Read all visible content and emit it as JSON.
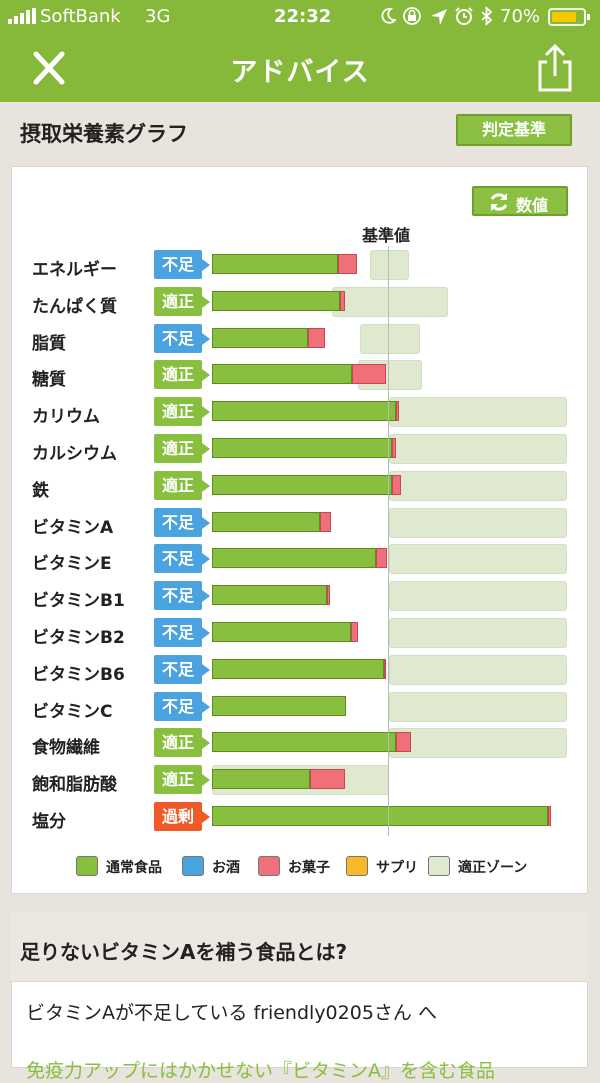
{
  "status": {
    "carrier": "SoftBank",
    "network": "3G",
    "time": "22:32",
    "battery": "70%"
  },
  "nav": {
    "title": "アドバイス",
    "close_icon": "close-icon",
    "share_icon": "share-icon"
  },
  "section": {
    "title": "摂取栄養素グラフ",
    "criteria_button": "判定基準",
    "value_button": "数値",
    "base_label": "基準値"
  },
  "colors": {
    "ok": "#88bf3f",
    "low": "#4aa3df",
    "over": "#ef5a28",
    "snack": "#f0707a",
    "supplement": "#f7b82b",
    "zone": "#dfe9cf"
  },
  "nutrients": [
    {
      "name": "エネルギー",
      "status": "不足",
      "type": "low"
    },
    {
      "name": "たんぱく質",
      "status": "適正",
      "type": "ok"
    },
    {
      "name": "脂質",
      "status": "不足",
      "type": "low"
    },
    {
      "name": "糖質",
      "status": "適正",
      "type": "ok"
    },
    {
      "name": "カリウム",
      "status": "適正",
      "type": "ok"
    },
    {
      "name": "カルシウム",
      "status": "適正",
      "type": "ok"
    },
    {
      "name": "鉄",
      "status": "適正",
      "type": "ok"
    },
    {
      "name": "ビタミンA",
      "status": "不足",
      "type": "low"
    },
    {
      "name": "ビタミンE",
      "status": "不足",
      "type": "low"
    },
    {
      "name": "ビタミンB1",
      "status": "不足",
      "type": "low"
    },
    {
      "name": "ビタミンB2",
      "status": "不足",
      "type": "low"
    },
    {
      "name": "ビタミンB6",
      "status": "不足",
      "type": "low"
    },
    {
      "name": "ビタミンC",
      "status": "不足",
      "type": "low"
    },
    {
      "name": "食物繊維",
      "status": "適正",
      "type": "ok"
    },
    {
      "name": "飽和脂肪酸",
      "status": "適正",
      "type": "ok"
    },
    {
      "name": "塩分",
      "status": "過剰",
      "type": "over"
    }
  ],
  "legend": [
    {
      "label": "通常食品",
      "color": "#88bf3f"
    },
    {
      "label": "お酒",
      "color": "#4aa3df"
    },
    {
      "label": "お菓子",
      "color": "#f0707a"
    },
    {
      "label": "サプリ",
      "color": "#f7b82b"
    },
    {
      "label": "適正ゾーン",
      "color": "#dfe9cf"
    }
  ],
  "recommend": {
    "title": "足りないビタミンAを補う食品とは?",
    "subtitle": "ビタミンAが不足している friendly0205さん へ",
    "link": "免疫力アップにはかかせない『ビタミンA』を含む食品"
  }
}
